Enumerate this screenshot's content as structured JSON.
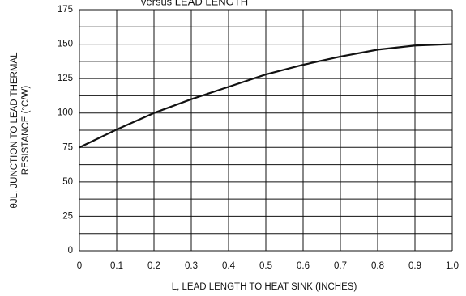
{
  "chart_data": {
    "type": "line",
    "title": "versus LEAD LENGTH",
    "xlabel": "L, LEAD LENGTH TO HEAT SINK (INCHES)",
    "ylabel": [
      "θJL, JUNCTION TO LEAD THERMAL",
      "RESISTANCE (°C/W)"
    ],
    "x": [
      0,
      0.1,
      0.2,
      0.3,
      0.4,
      0.5,
      0.6,
      0.7,
      0.8,
      0.9,
      1.0
    ],
    "series": [
      {
        "name": "θJL",
        "color": "#111111",
        "values": [
          75,
          88,
          100,
          110,
          119,
          128,
          135,
          141,
          146,
          149,
          150
        ]
      }
    ],
    "xlim": [
      0,
      1
    ],
    "xticks": [
      0,
      0.1,
      0.2,
      0.3,
      0.4,
      0.5,
      0.6,
      0.7,
      0.8,
      0.9,
      {
        "value": 1,
        "label": "1.0"
      }
    ],
    "ylim": [
      0,
      175
    ],
    "yticks": [
      0,
      25,
      50,
      75,
      100,
      125,
      150,
      175
    ],
    "grid": true
  }
}
